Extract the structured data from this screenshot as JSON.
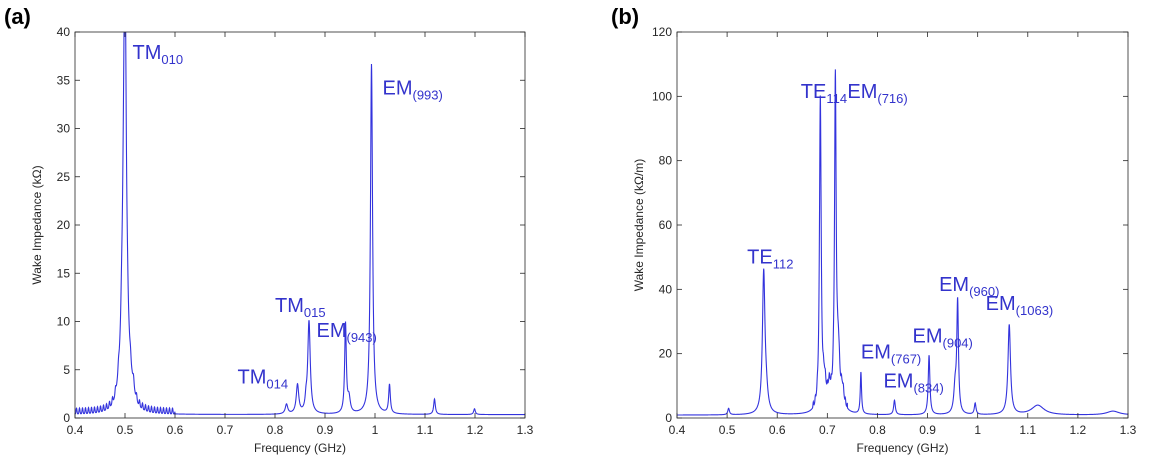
{
  "chart_data": [
    {
      "panel_label": "(a)",
      "type": "line",
      "xlabel": "Frequency (GHz)",
      "ylabel": "Wake Impedance (kΩ)",
      "xlim": [
        0.4,
        1.3
      ],
      "ylim": [
        0,
        40
      ],
      "xticks": [
        "0.4",
        "0.5",
        "0.6",
        "0.7",
        "0.8",
        "0.9",
        "1",
        "1.1",
        "1.2",
        "1.3"
      ],
      "yticks": [
        "0",
        "5",
        "10",
        "15",
        "20",
        "25",
        "30",
        "35",
        "40"
      ],
      "grid": false,
      "color": "#3333dd",
      "peaks": [
        {
          "x": 0.488,
          "y": 1.2,
          "w": 0.006
        },
        {
          "x": 0.494,
          "y": 4.5,
          "w": 0.004
        },
        {
          "x": 0.497,
          "y": 8.5,
          "w": 0.003
        },
        {
          "x": 0.5,
          "y": 40,
          "w": 0.003
        },
        {
          "x": 0.504,
          "y": 3.5,
          "w": 0.004
        },
        {
          "x": 0.509,
          "y": 1.8,
          "w": 0.005
        },
        {
          "x": 0.516,
          "y": 1.2,
          "w": 0.005
        },
        {
          "x": 0.823,
          "y": 1.0,
          "w": 0.003
        },
        {
          "x": 0.845,
          "y": 3.0,
          "w": 0.003
        },
        {
          "x": 0.862,
          "y": 1.0,
          "w": 0.002
        },
        {
          "x": 0.868,
          "y": 9.6,
          "w": 0.003
        },
        {
          "x": 0.941,
          "y": 9.3,
          "w": 0.002
        },
        {
          "x": 0.948,
          "y": 1.5,
          "w": 0.003
        },
        {
          "x": 0.993,
          "y": 36.3,
          "w": 0.0025
        },
        {
          "x": 1.029,
          "y": 3.0,
          "w": 0.002
        },
        {
          "x": 1.119,
          "y": 1.6,
          "w": 0.002
        },
        {
          "x": 1.199,
          "y": 0.6,
          "w": 0.002
        }
      ],
      "ripple": {
        "from": 0.4,
        "to": 0.6,
        "amplitude": 0.6,
        "period": 0.006
      },
      "baseline": 0.35,
      "annotations": [
        {
          "main": "TM",
          "sub": "010",
          "x": 0.515,
          "y": 37.2
        },
        {
          "main": "TM",
          "sub": "015",
          "x": 0.8,
          "y": 11.0
        },
        {
          "main": "EM",
          "sub": "(943)",
          "x": 0.883,
          "y": 8.4
        },
        {
          "main": "TM",
          "sub": "014",
          "x": 0.725,
          "y": 3.6
        },
        {
          "main": "EM",
          "sub": "(993)",
          "x": 1.015,
          "y": 33.5
        }
      ]
    },
    {
      "panel_label": "(b)",
      "type": "line",
      "xlabel": "Frequency (GHz)",
      "ylabel": "Wake Impedance (kΩ/m)",
      "xlim": [
        0.4,
        1.3
      ],
      "ylim": [
        0,
        120
      ],
      "xticks": [
        "0.4",
        "0.5",
        "0.6",
        "0.7",
        "0.8",
        "0.9",
        "1",
        "1.1",
        "1.2",
        "1.3"
      ],
      "yticks": [
        "0",
        "20",
        "40",
        "60",
        "80",
        "100",
        "120"
      ],
      "grid": false,
      "color": "#3333dd",
      "peaks": [
        {
          "x": 0.503,
          "y": 2.0,
          "w": 0.002
        },
        {
          "x": 0.573,
          "y": 43.5,
          "w": 0.003
        },
        {
          "x": 0.578,
          "y": 5.0,
          "w": 0.004
        },
        {
          "x": 0.686,
          "y": 97,
          "w": 0.002
        },
        {
          "x": 0.694,
          "y": 8.0,
          "w": 0.004
        },
        {
          "x": 0.704,
          "y": 6.0,
          "w": 0.004
        },
        {
          "x": 0.716,
          "y": 101,
          "w": 0.002
        },
        {
          "x": 0.722,
          "y": 16.0,
          "w": 0.003
        },
        {
          "x": 0.73,
          "y": 6.0,
          "w": 0.004
        },
        {
          "x": 0.767,
          "y": 13.0,
          "w": 0.0015
        },
        {
          "x": 0.834,
          "y": 4.5,
          "w": 0.002
        },
        {
          "x": 0.903,
          "y": 18.5,
          "w": 0.002
        },
        {
          "x": 0.955,
          "y": 8.0,
          "w": 0.003
        },
        {
          "x": 0.96,
          "y": 34.5,
          "w": 0.002
        },
        {
          "x": 0.995,
          "y": 3.5,
          "w": 0.002
        },
        {
          "x": 1.063,
          "y": 28.0,
          "w": 0.003
        },
        {
          "x": 1.12,
          "y": 3.0,
          "w": 0.015
        },
        {
          "x": 1.27,
          "y": 1.2,
          "w": 0.015
        }
      ],
      "ripple": {
        "from": 0.67,
        "to": 0.74,
        "amplitude": 1.5,
        "period": 0.004
      },
      "baseline": 0.9,
      "annotations": [
        {
          "main": "TE",
          "sub": "112",
          "x": 0.54,
          "y": 48
        },
        {
          "main": "TE",
          "sub": "114",
          "x": 0.647,
          "y": 99.5
        },
        {
          "main": "EM",
          "sub": "(716)",
          "x": 0.74,
          "y": 99.5
        },
        {
          "main": "EM",
          "sub": "(767)",
          "x": 0.767,
          "y": 18.5
        },
        {
          "main": "EM",
          "sub": "(834)",
          "x": 0.812,
          "y": 9.5
        },
        {
          "main": "EM",
          "sub": "(904)",
          "x": 0.87,
          "y": 23.5
        },
        {
          "main": "EM",
          "sub": "(960)",
          "x": 0.923,
          "y": 39.5
        },
        {
          "main": "EM",
          "sub": "(1063)",
          "x": 1.016,
          "y": 33.5
        }
      ]
    }
  ]
}
